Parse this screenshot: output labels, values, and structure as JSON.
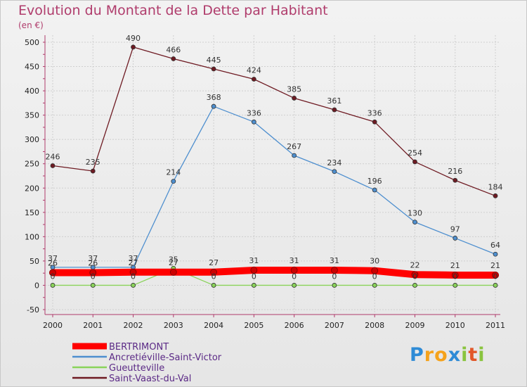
{
  "chart_data": {
    "type": "line",
    "title": "Evolution du Montant de la Dette par Habitant",
    "subtitle": "(en €)",
    "x": [
      "2000",
      "2001",
      "2002",
      "2003",
      "2004",
      "2005",
      "2006",
      "2007",
      "2008",
      "2009",
      "2010",
      "2011"
    ],
    "ylim": [
      -50,
      500
    ],
    "yticks": [
      -50,
      0,
      50,
      100,
      150,
      200,
      250,
      300,
      350,
      400,
      450,
      500
    ],
    "series": [
      {
        "name": "Saint-Vaast-du-Val",
        "color": "#6e1a22",
        "values": [
          246,
          235,
          490,
          466,
          445,
          424,
          385,
          361,
          336,
          254,
          216,
          184
        ]
      },
      {
        "name": "Ancretiéville-Saint-Victor",
        "color": "#4e8fcf",
        "values": [
          37,
          37,
          37,
          214,
          368,
          336,
          267,
          234,
          196,
          130,
          97,
          64
        ]
      },
      {
        "name": "Gueutteville",
        "color": "#8ad35a",
        "values": [
          0,
          0,
          0,
          35,
          0,
          0,
          0,
          0,
          0,
          0,
          0,
          0
        ]
      },
      {
        "name": "BERTRIMONT",
        "color": "#ff0000",
        "values": [
          26,
          26,
          27,
          27,
          27,
          31,
          31,
          31,
          30,
          22,
          21,
          21
        ]
      }
    ],
    "legend": [
      "BERTRIMONT",
      "Ancretiéville-Saint-Victor",
      "Gueutteville",
      "Saint-Vaast-du-Val"
    ],
    "legend_colors": [
      "#ff0000",
      "#4e8fcf",
      "#8ad35a",
      "#6e1a22"
    ]
  },
  "logo": {
    "letters": [
      "P",
      "r",
      "o",
      "x",
      "i",
      "t",
      "i"
    ],
    "colors": [
      "#2e8bd6",
      "#f5a21b",
      "#f5a21b",
      "#2e8bd6",
      "#8ac43f",
      "#e2582a",
      "#8ac43f"
    ]
  }
}
